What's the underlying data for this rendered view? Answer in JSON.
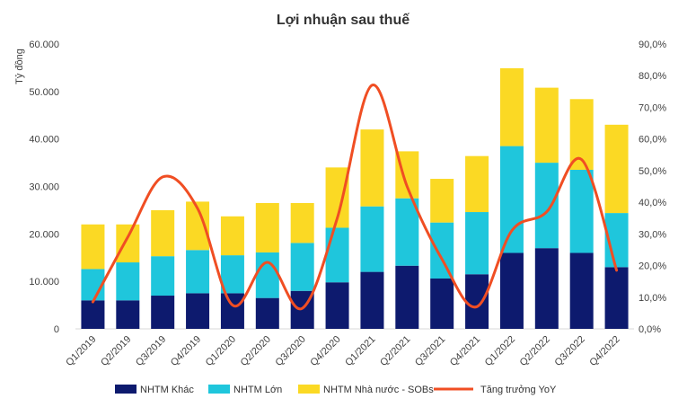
{
  "chart_data": {
    "type": "bar",
    "stacked": true,
    "title": "Lợi nhuận sau thuế",
    "ylabel": "Tỷ đồng",
    "ylim": [
      0,
      60000
    ],
    "y_ticks": [
      "0",
      "10.000",
      "20.000",
      "30.000",
      "40.000",
      "50.000",
      "60.000"
    ],
    "y2lim": [
      0,
      90
    ],
    "y2_ticks": [
      "0,0%",
      "10,0%",
      "20,0%",
      "30,0%",
      "40,0%",
      "50,0%",
      "60,0%",
      "70,0%",
      "80,0%",
      "90,0%"
    ],
    "categories": [
      "Q1/2019",
      "Q2/2019",
      "Q3/2019",
      "Q4/2019",
      "Q1/2020",
      "Q2/2020",
      "Q3/2020",
      "Q4/2020",
      "Q1/2021",
      "Q2/2021",
      "Q3/2021",
      "Q4/2021",
      "Q1/2022",
      "Q2/2022",
      "Q3/2022",
      "Q4/2022"
    ],
    "series": [
      {
        "name": "NHTM Khác",
        "color": "#0d1a6e",
        "values": [
          6000,
          6000,
          7000,
          7500,
          7500,
          6500,
          8000,
          9800,
          12000,
          13300,
          10600,
          11500,
          16000,
          17000,
          16000,
          13000
        ]
      },
      {
        "name": "NHTM Lớn",
        "color": "#1fc6dc",
        "values": [
          6600,
          8000,
          8300,
          9100,
          8000,
          9600,
          10100,
          11500,
          13800,
          14200,
          11800,
          13100,
          22500,
          18000,
          17500,
          11400
        ]
      },
      {
        "name": "NHTM Nhà nước - SOBs",
        "color": "#fbd924",
        "values": [
          9400,
          8000,
          9700,
          10200,
          8200,
          10400,
          8400,
          12700,
          16200,
          9900,
          9200,
          11800,
          16400,
          15800,
          14900,
          18600
        ]
      }
    ],
    "line": {
      "name": "Tăng trưởng YoY",
      "color": "#f04e23",
      "axis": "right",
      "values": [
        8.5,
        29.0,
        48.0,
        38.0,
        7.5,
        21.0,
        6.5,
        35.0,
        77.0,
        45.0,
        22.0,
        7.0,
        31.0,
        37.0,
        53.5,
        18.5
      ]
    },
    "legend_position": "bottom"
  }
}
